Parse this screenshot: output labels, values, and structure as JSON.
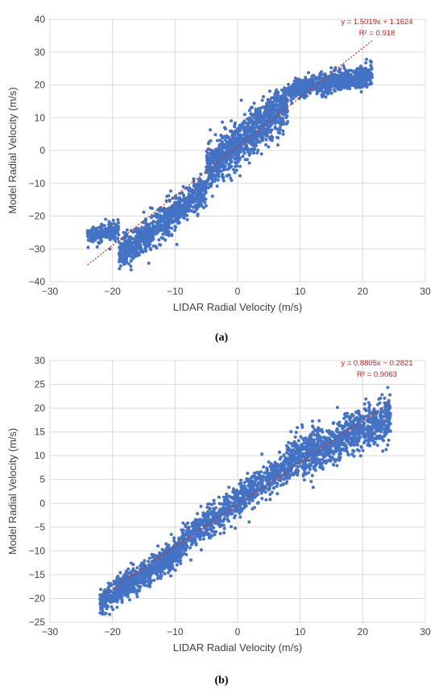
{
  "chart_data": [
    {
      "type": "scatter",
      "caption": "(a)",
      "xlabel": "LIDAR Radial Velocity (m/s)",
      "ylabel": "Model Radial Velocity (m/s)",
      "xlim": [
        -30,
        30
      ],
      "ylim": [
        -40,
        40
      ],
      "xticks": [
        -30,
        -20,
        -10,
        0,
        10,
        20,
        30
      ],
      "yticks": [
        -40,
        -30,
        -20,
        -10,
        0,
        10,
        20,
        30,
        40
      ],
      "grid": true,
      "marker_color": "#4472c4",
      "trendline_color": "#c0392b",
      "trendline": {
        "slope": 1.5019,
        "intercept": 1.1624,
        "x_range": [
          -24,
          21.5
        ]
      },
      "equation_label": "y = 1.5019x + 1.1624",
      "r2_label": "R² = 0.918",
      "clusters": [
        {
          "x_range": [
            -24,
            -19
          ],
          "y_center_slope": 0.35,
          "y_center_offset": -17.5,
          "spread": 2.2,
          "n": 200
        },
        {
          "x_range": [
            -19,
            -5
          ],
          "y_center_slope": 1.45,
          "y_center_offset": -4.5,
          "spread": 4.0,
          "n": 900
        },
        {
          "x_range": [
            -5,
            8
          ],
          "y_center_slope": 1.6,
          "y_center_offset": 2.0,
          "spread": 5.5,
          "n": 1100
        },
        {
          "x_range": [
            8,
            21.5
          ],
          "y_center_slope": 0.35,
          "y_center_offset": 15.5,
          "spread": 2.6,
          "n": 800
        }
      ]
    },
    {
      "type": "scatter",
      "caption": "(b)",
      "xlabel": "LIDAR Radial Velocity (m/s)",
      "ylabel": "Model Radial Velocity (m/s)",
      "xlim": [
        -30,
        30
      ],
      "ylim": [
        -25,
        30
      ],
      "xticks": [
        -30,
        -20,
        -10,
        0,
        10,
        20,
        30
      ],
      "yticks": [
        -25,
        -20,
        -15,
        -10,
        -5,
        0,
        5,
        10,
        15,
        20,
        25,
        30
      ],
      "grid": true,
      "marker_color": "#4472c4",
      "trendline_color": "#c0392b",
      "trendline": {
        "slope": 0.8805,
        "intercept": -0.2821,
        "x_range": [
          -20,
          24.5
        ]
      },
      "equation_label": "y = 0.8805x − 0.2821",
      "r2_label": "R² = 0.9063",
      "clusters": [
        {
          "x_range": [
            -22,
            -9
          ],
          "y_center_slope": 0.85,
          "y_center_offset": -2.2,
          "spread": 2.2,
          "n": 900
        },
        {
          "x_range": [
            -9,
            8
          ],
          "y_center_slope": 0.95,
          "y_center_offset": 0.3,
          "spread": 2.8,
          "n": 800
        },
        {
          "x_range": [
            8,
            24.5
          ],
          "y_center_slope": 0.55,
          "y_center_offset": 4.5,
          "spread": 3.8,
          "n": 1000
        }
      ]
    }
  ]
}
